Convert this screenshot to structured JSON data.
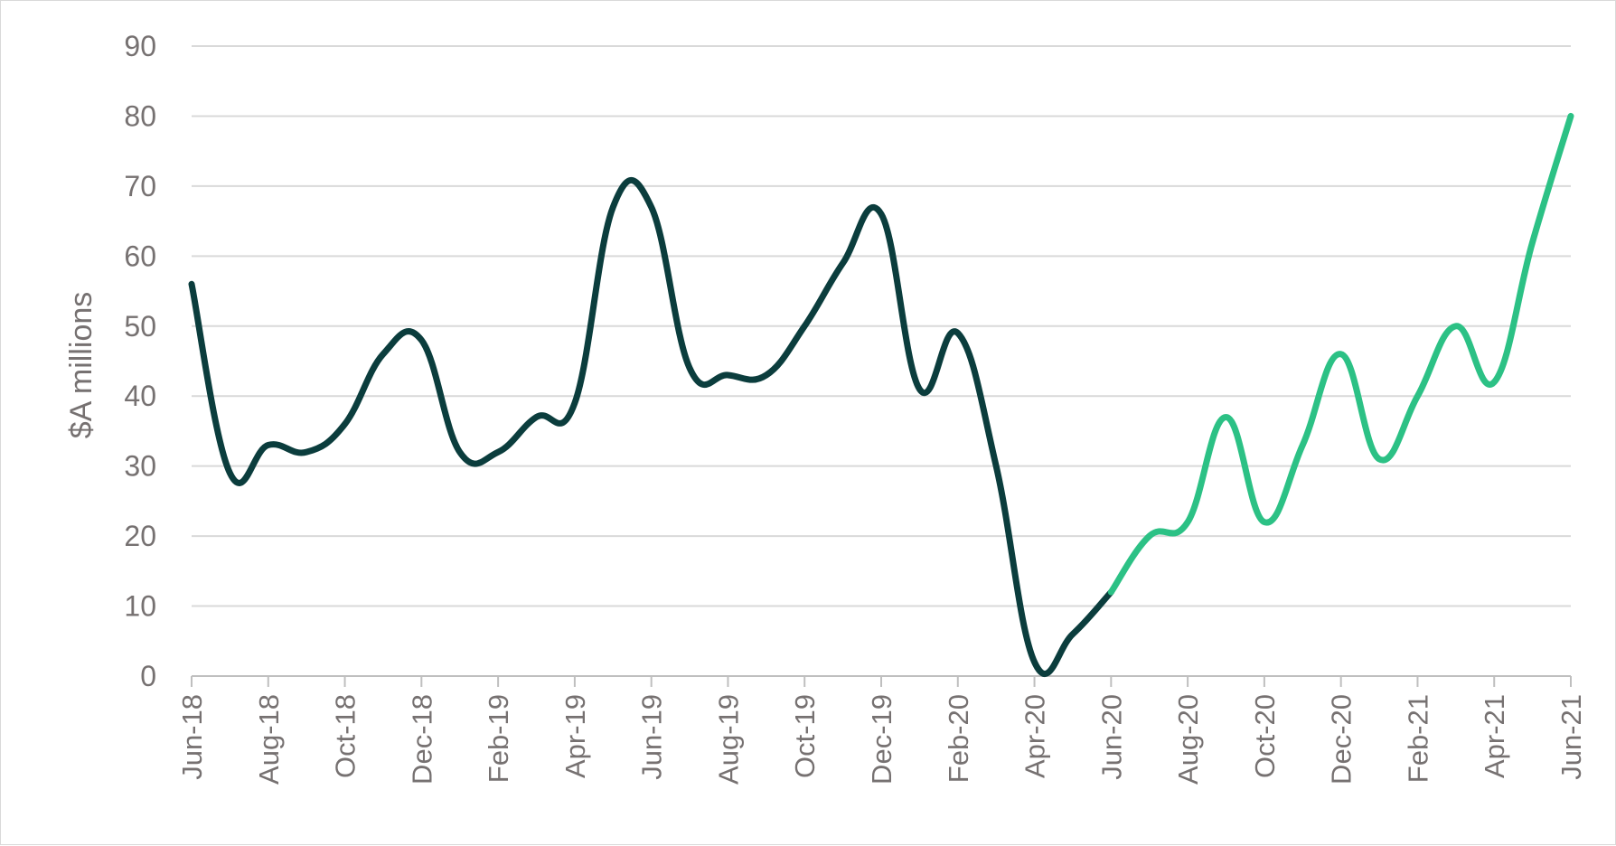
{
  "chart_data": {
    "type": "line",
    "title": "",
    "xlabel": "",
    "ylabel": "$A millions",
    "ylim": [
      0,
      90
    ],
    "yticks": [
      0,
      10,
      20,
      30,
      40,
      50,
      60,
      70,
      80,
      90
    ],
    "grid": true,
    "x_tick_labels": [
      "Jun-18",
      "Aug-18",
      "Oct-18",
      "Dec-18",
      "Feb-19",
      "Apr-19",
      "Jun-19",
      "Aug-19",
      "Oct-19",
      "Dec-19",
      "Feb-20",
      "Apr-20",
      "Jun-20",
      "Aug-20",
      "Oct-20",
      "Dec-20",
      "Feb-21",
      "Apr-21",
      "Jun-21"
    ],
    "categories": [
      "Jun-18",
      "Jul-18",
      "Aug-18",
      "Sep-18",
      "Oct-18",
      "Nov-18",
      "Dec-18",
      "Jan-19",
      "Feb-19",
      "Mar-19",
      "Apr-19",
      "May-19",
      "Jun-19",
      "Jul-19",
      "Aug-19",
      "Sep-19",
      "Oct-19",
      "Nov-19",
      "Dec-19",
      "Jan-20",
      "Feb-20",
      "Mar-20",
      "Apr-20",
      "May-20",
      "Jun-20",
      "Jul-20",
      "Aug-20",
      "Sep-20",
      "Oct-20",
      "Nov-20",
      "Dec-20",
      "Jan-21",
      "Feb-21",
      "Mar-21",
      "Apr-21",
      "May-21",
      "Jun-21"
    ],
    "series": [
      {
        "color": "#0b3d3d",
        "values": [
          56,
          29,
          33,
          32,
          36,
          46,
          48,
          32,
          32,
          37,
          39,
          67,
          67,
          44,
          43,
          43,
          50,
          59,
          66,
          41,
          49,
          30,
          2,
          6,
          12,
          null,
          null,
          null,
          null,
          null,
          null,
          null,
          null,
          null,
          null,
          null,
          null
        ]
      },
      {
        "color": "#2cc185",
        "values": [
          null,
          null,
          null,
          null,
          null,
          null,
          null,
          null,
          null,
          null,
          null,
          null,
          null,
          null,
          null,
          null,
          null,
          null,
          null,
          null,
          null,
          null,
          null,
          null,
          12,
          20,
          22,
          37,
          22,
          33,
          46,
          31,
          40,
          50,
          42,
          62,
          80
        ]
      }
    ]
  }
}
